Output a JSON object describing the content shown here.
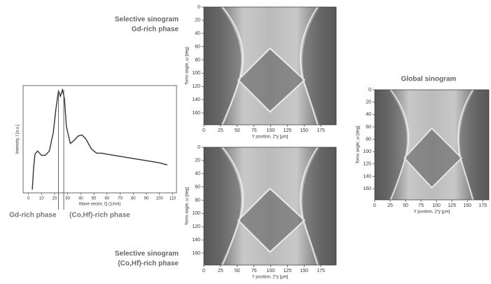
{
  "chart_data": [
    {
      "type": "line",
      "xlabel": "Wave vector, Q (1/nm)",
      "ylabel": "Intensity, I [a.u.]",
      "x": [
        3,
        4,
        5,
        7,
        10,
        13,
        16,
        19,
        21,
        23,
        24.5,
        26,
        27.5,
        29,
        32,
        35,
        38,
        41,
        44,
        48,
        52,
        56,
        60,
        70,
        80,
        90,
        100,
        106
      ],
      "series": [
        {
          "color": "#333333",
          "values": [
            0.03,
            0.23,
            0.36,
            0.39,
            0.35,
            0.35,
            0.39,
            0.56,
            0.78,
            0.95,
            0.9,
            0.96,
            0.88,
            0.62,
            0.46,
            0.49,
            0.53,
            0.54,
            0.5,
            0.41,
            0.37,
            0.37,
            0.36,
            0.34,
            0.32,
            0.3,
            0.28,
            0.26
          ]
        }
      ],
      "xlim": [
        -4,
        113
      ],
      "ylim": [
        0,
        1
      ],
      "xticks": [
        0,
        10,
        20,
        30,
        40,
        50,
        60,
        70,
        80,
        90,
        100,
        110
      ],
      "markers": [
        {
          "x": 23,
          "label": "Gd-rich phase"
        },
        {
          "x": 27,
          "label": "(Co,Hf)-rich phase"
        }
      ]
    },
    {
      "type": "image",
      "title": [
        "Selective sinogram",
        "Gd-rich phase"
      ],
      "xlabel": "Y position, 2*y [μm]",
      "ylabel": "Tomo angle, ω [deg]",
      "xlim": [
        0,
        198
      ],
      "ylim": [
        178,
        0
      ],
      "xticks": [
        0,
        25,
        50,
        75,
        100,
        125,
        150,
        175
      ],
      "yticks": [
        0,
        20,
        40,
        60,
        80,
        100,
        120,
        140,
        160
      ]
    },
    {
      "type": "image",
      "title": [
        "Selective sinogram",
        "(Co,Hf)-rich phase"
      ],
      "xlabel": "Y position, 2*y [μm]",
      "ylabel": "Tomo angle, ω [deg]",
      "xlim": [
        0,
        198
      ],
      "ylim": [
        178,
        0
      ],
      "xticks": [
        0,
        25,
        50,
        75,
        100,
        125,
        150,
        175
      ],
      "yticks": [
        0,
        20,
        40,
        60,
        80,
        100,
        120,
        140,
        160
      ]
    },
    {
      "type": "image",
      "title": [
        "Global sinogram"
      ],
      "xlabel": "Y position, 2*y [μm]",
      "ylabel": "Tomo angle, ω [deg]",
      "xlim": [
        0,
        185
      ],
      "ylim": [
        178,
        0
      ],
      "xticks": [
        0,
        25,
        50,
        75,
        100,
        125,
        150,
        175
      ],
      "yticks": [
        0,
        20,
        40,
        60,
        80,
        100,
        120,
        140,
        160
      ]
    }
  ]
}
